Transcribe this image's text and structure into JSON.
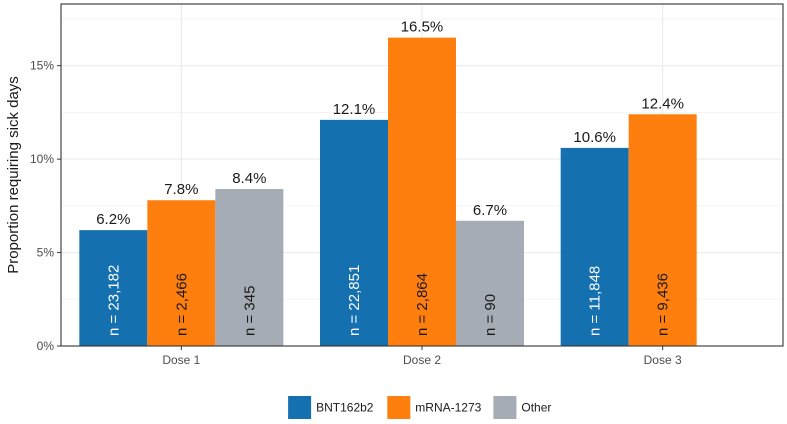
{
  "chart_data": {
    "type": "bar",
    "categories": [
      "Dose 1",
      "Dose 2",
      "Dose 3"
    ],
    "ylabel": "Proportion requiring sick days",
    "xlabel": "",
    "ylim": [
      0,
      18.3
    ],
    "yticks": [
      0,
      5,
      10,
      15
    ],
    "ytick_labels": [
      "0%",
      "5%",
      "10%",
      "15%"
    ],
    "grid": true,
    "legend_position": "bottom",
    "series": [
      {
        "name": "BNT162b2",
        "color": "#1570b0",
        "values": [
          6.2,
          12.1,
          10.6
        ],
        "value_labels": [
          "6.2%",
          "12.1%",
          "10.6%"
        ],
        "n_labels": [
          "n = 23,182",
          "n = 22,851",
          "n = 11,848"
        ],
        "n_label_color": "#ffffff"
      },
      {
        "name": "mRNA-1273",
        "color": "#ff7f0e",
        "values": [
          7.8,
          16.5,
          12.4
        ],
        "value_labels": [
          "7.8%",
          "16.5%",
          "12.4%"
        ],
        "n_labels": [
          "n = 2,466",
          "n = 2,864",
          "n = 9,436"
        ],
        "n_label_color": "#1a1a1a"
      },
      {
        "name": "Other",
        "color": "#a5acb5",
        "values": [
          8.4,
          6.7,
          null
        ],
        "value_labels": [
          "8.4%",
          "6.7%",
          null
        ],
        "n_labels": [
          "n = 345",
          "n = 90",
          null
        ],
        "n_label_color": "#1a1a1a"
      }
    ]
  }
}
